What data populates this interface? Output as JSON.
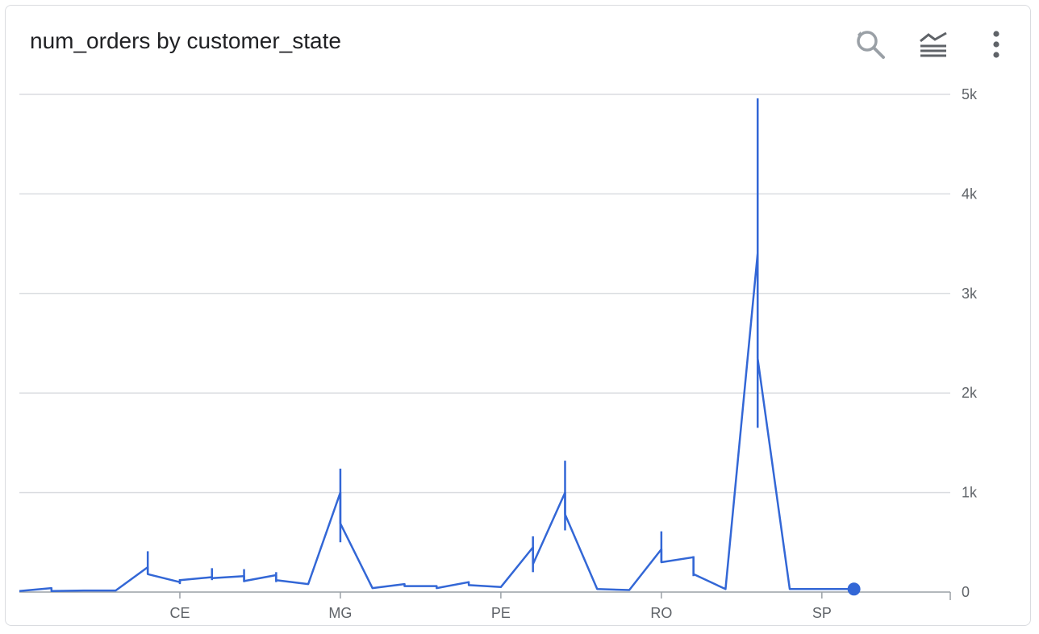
{
  "card": {
    "title": "num_orders by customer_state"
  },
  "toolbar": {
    "icons": [
      "zoom-reset-icon",
      "layers-icon",
      "more-vert-icon"
    ]
  },
  "colors": {
    "series": "#3367d6",
    "grid": "#dadce0",
    "axis": "#9aa0a6",
    "text": "#5f6368"
  },
  "chart_data": {
    "type": "line",
    "title": "num_orders by customer_state",
    "xlabel": "",
    "ylabel": "",
    "x_tick_labels": [
      "CE",
      "MG",
      "PE",
      "RO",
      "SP"
    ],
    "x_tick_positions": [
      5,
      10,
      15,
      20,
      25
    ],
    "y_ticks": [
      0,
      1000,
      2000,
      3000,
      4000,
      5000
    ],
    "y_tick_labels": [
      "0",
      "1k",
      "2k",
      "3k",
      "4k",
      "5k"
    ],
    "ylim": [
      0,
      5000
    ],
    "xlim": [
      0,
      29
    ],
    "y_axis_position": "right",
    "grid": true,
    "x": [
      0,
      1,
      2,
      3,
      4,
      5,
      6,
      7,
      8,
      9,
      10,
      11,
      12,
      13,
      14,
      15,
      16,
      17,
      18,
      19,
      20,
      21,
      22,
      23,
      24,
      25,
      26
    ],
    "values": [
      10,
      40,
      15,
      15,
      250,
      100,
      150,
      160,
      170,
      80,
      1000,
      40,
      80,
      60,
      100,
      50,
      450,
      1000,
      30,
      20,
      430,
      350,
      30,
      3400,
      30,
      30,
      30
    ],
    "segment_ends": [
      null,
      10,
      null,
      null,
      180,
      120,
      140,
      110,
      120,
      null,
      690,
      null,
      60,
      40,
      70,
      null,
      280,
      780,
      null,
      null,
      300,
      180,
      null,
      2350,
      null,
      null,
      null
    ],
    "error_low": [
      null,
      null,
      null,
      null,
      180,
      80,
      120,
      100,
      100,
      null,
      500,
      null,
      null,
      null,
      null,
      null,
      200,
      620,
      null,
      null,
      300,
      160,
      null,
      1650,
      null,
      null,
      null
    ],
    "error_high": [
      null,
      null,
      null,
      null,
      410,
      130,
      240,
      230,
      200,
      null,
      1240,
      null,
      null,
      null,
      190,
      null,
      560,
      1320,
      null,
      null,
      610,
      360,
      null,
      4960,
      null,
      null,
      null
    ],
    "highlighted_point": {
      "x": 26,
      "y": 30
    }
  }
}
